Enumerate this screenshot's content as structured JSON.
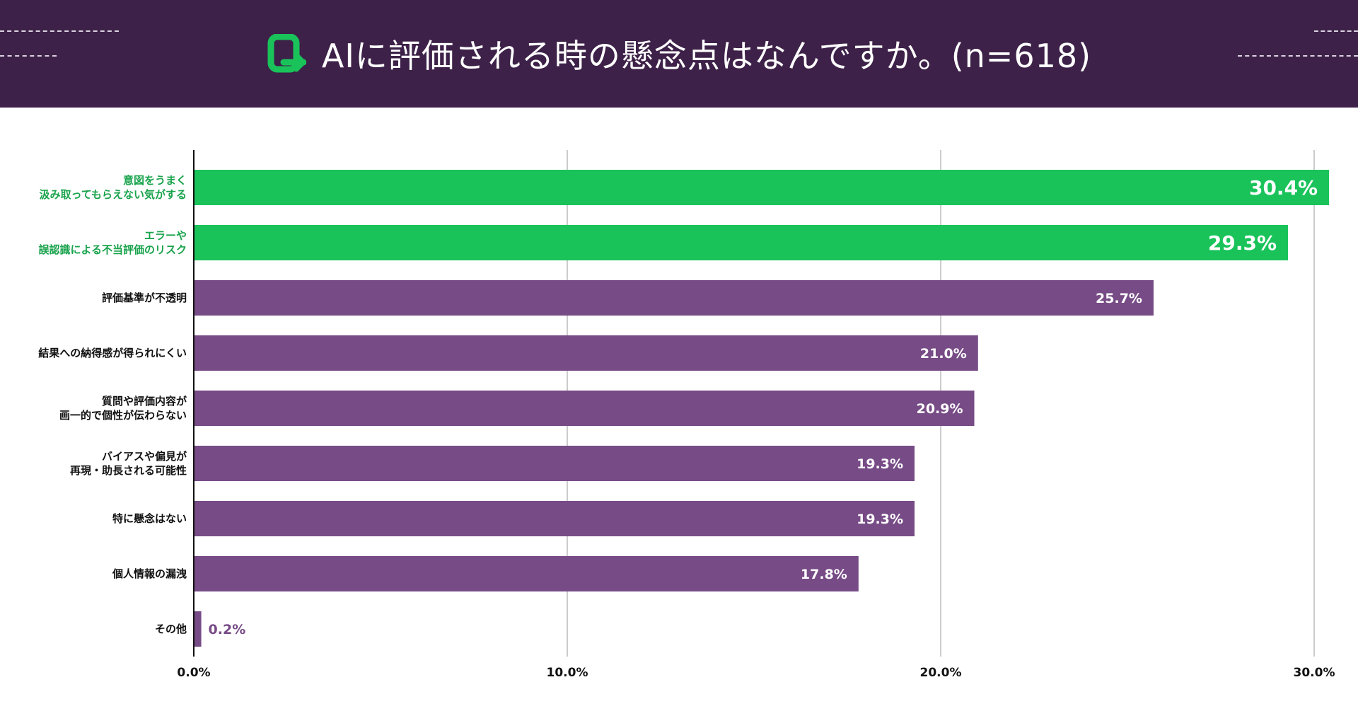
{
  "header": {
    "title": "AIに評価される時の懸念点はなんですか。(n=618)",
    "background_color": "#3d2148",
    "logo_icon": "brand-logo-icon",
    "logo_color": "#19c35a"
  },
  "chart_data": {
    "type": "bar",
    "orientation": "horizontal",
    "title": "AIに評価される時の懸念点はなんですか。(n=618)",
    "xlabel": "",
    "ylabel": "",
    "xlim": [
      0,
      30
    ],
    "x_ticks": [
      "0.0%",
      "10.0%",
      "20.0%",
      "30.0%"
    ],
    "grid": "vertical",
    "categories": [
      [
        "意図をうまく",
        "汲み取ってもらえない気がする"
      ],
      [
        "エラーや",
        "誤認識による不当評価のリスク"
      ],
      [
        "評価基準が不透明"
      ],
      [
        "結果への納得感が得られにくい"
      ],
      [
        "質問や評価内容が",
        "画一的で個性が伝わらない"
      ],
      [
        "バイアスや偏見が",
        "再現・助長される可能性"
      ],
      [
        "特に懸念はない"
      ],
      [
        "個人情報の漏洩"
      ],
      [
        "その他"
      ]
    ],
    "values": [
      30.4,
      29.3,
      25.7,
      21.0,
      20.9,
      19.3,
      19.3,
      17.8,
      0.2
    ],
    "value_labels": [
      "30.4%",
      "29.3%",
      "25.7%",
      "21.0%",
      "20.9%",
      "19.3%",
      "19.3%",
      "17.8%",
      "0.2%"
    ],
    "highlight_count": 2,
    "colors": {
      "highlight": "#19c35a",
      "default": "#774b86",
      "highlight_label": "#19a34c",
      "default_label": "#111111",
      "grid": "#cccccc",
      "axis": "#111111"
    }
  }
}
